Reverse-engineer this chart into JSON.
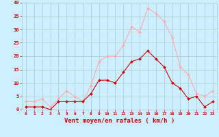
{
  "hours": [
    0,
    1,
    2,
    3,
    4,
    5,
    6,
    7,
    8,
    9,
    10,
    11,
    12,
    13,
    14,
    15,
    16,
    17,
    18,
    19,
    20,
    21,
    22,
    23
  ],
  "wind_mean": [
    1,
    1,
    1,
    0,
    3,
    3,
    3,
    3,
    6,
    11,
    11,
    10,
    14,
    18,
    19,
    22,
    19,
    16,
    10,
    8,
    4,
    5,
    1,
    3
  ],
  "wind_gust": [
    3,
    3,
    4,
    1,
    4,
    7,
    5,
    3,
    9,
    18,
    20,
    20,
    24,
    31,
    29,
    38,
    36,
    33,
    27,
    16,
    13,
    6,
    5,
    7
  ],
  "mean_color": "#cc0000",
  "gust_color": "#ffaaaa",
  "bg_color": "#cceeff",
  "grid_color": "#aacccc",
  "xlabel": "Vent moyen/en rafales ( km/h )",
  "xlabel_color": "#cc0000",
  "tick_color": "#cc0000",
  "ylim": [
    0,
    40
  ],
  "yticks": [
    0,
    5,
    10,
    15,
    20,
    25,
    30,
    35,
    40
  ],
  "marker_size": 2.0,
  "linewidth": 0.8
}
